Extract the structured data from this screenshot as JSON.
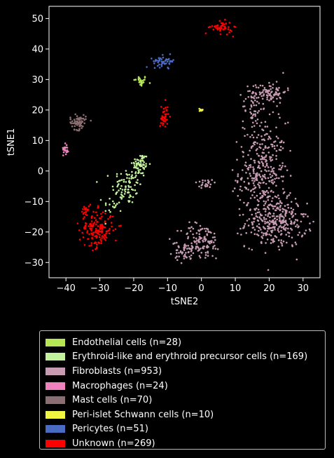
{
  "chart_data": {
    "type": "scatter",
    "title": "",
    "xlabel": "tSNE2",
    "ylabel": "tSNE1",
    "xlim": [
      -45,
      35
    ],
    "ylim": [
      -35,
      54
    ],
    "xticks": [
      -40,
      -30,
      -20,
      -10,
      0,
      10,
      20,
      30
    ],
    "yticks": [
      -30,
      -20,
      -10,
      0,
      10,
      20,
      30,
      40,
      50
    ],
    "grid": false,
    "legend_position": "below",
    "series": [
      {
        "name": "Endothelial cells (n=28)",
        "color": "#b5e655",
        "count": 28,
        "clusters": [
          {
            "x": -18,
            "y": 29.5,
            "sx": 1.0,
            "sy": 0.9,
            "n": 28
          }
        ]
      },
      {
        "name": "Erythroid-like and erythroid precursor cells (n=169)",
        "color": "#c2f29b",
        "count": 169,
        "clusters": [
          {
            "x": -22,
            "y": -5,
            "sx": 2.2,
            "sy": 3.0,
            "n": 80
          },
          {
            "x": -18,
            "y": 2,
            "sx": 1.2,
            "sy": 2.0,
            "n": 70
          },
          {
            "x": -26,
            "y": -11,
            "sx": 1.5,
            "sy": 1.5,
            "n": 19
          }
        ]
      },
      {
        "name": "Fibroblasts (n=953)",
        "color": "#c79cb2",
        "count": 953,
        "clusters": [
          {
            "x": 18,
            "y": 0,
            "sx": 3.5,
            "sy": 8.0,
            "n": 330
          },
          {
            "x": 22,
            "y": -17,
            "sx": 4.5,
            "sy": 4.0,
            "n": 300
          },
          {
            "x": 20,
            "y": 26,
            "sx": 2.5,
            "sy": 1.8,
            "n": 90
          },
          {
            "x": 15,
            "y": 21,
            "sx": 1.5,
            "sy": 3.0,
            "n": 50
          },
          {
            "x": 0,
            "y": -23,
            "sx": 3.0,
            "sy": 3.0,
            "n": 120
          },
          {
            "x": -5,
            "y": -27,
            "sx": 1.5,
            "sy": 1.5,
            "n": 40
          },
          {
            "x": 1,
            "y": -4,
            "sx": 1.8,
            "sy": 0.8,
            "n": 23
          }
        ]
      },
      {
        "name": "Macrophages (n=24)",
        "color": "#ee82bc",
        "count": 24,
        "clusters": [
          {
            "x": -40,
            "y": 7.5,
            "sx": 0.4,
            "sy": 1.0,
            "n": 24
          }
        ]
      },
      {
        "name": "Mast cells (n=70)",
        "color": "#8a6e72",
        "count": 70,
        "clusters": [
          {
            "x": -36.5,
            "y": 16,
            "sx": 1.2,
            "sy": 1.2,
            "n": 70
          }
        ]
      },
      {
        "name": "Peri-islet Schwann cells (n=10)",
        "color": "#f0f542",
        "count": 10,
        "clusters": [
          {
            "x": 0,
            "y": 20,
            "sx": 0.3,
            "sy": 0.25,
            "n": 10
          }
        ]
      },
      {
        "name": "Pericytes (n=51)",
        "color": "#4a6bc4",
        "count": 51,
        "clusters": [
          {
            "x": -11,
            "y": 36,
            "sx": 1.6,
            "sy": 0.9,
            "n": 51
          }
        ]
      },
      {
        "name": "Unknown (n=269)",
        "color": "#ff0000",
        "count": 269,
        "clusters": [
          {
            "x": -31,
            "y": -19,
            "sx": 2.5,
            "sy": 3.0,
            "n": 160
          },
          {
            "x": 6,
            "y": 47,
            "sx": 1.6,
            "sy": 1.0,
            "n": 50
          },
          {
            "x": -11,
            "y": 18,
            "sx": 0.6,
            "sy": 2.2,
            "n": 40
          },
          {
            "x": -34,
            "y": -13,
            "sx": 0.8,
            "sy": 0.8,
            "n": 17
          },
          {
            "x": -24,
            "y": -18,
            "sx": 0.2,
            "sy": 0.2,
            "n": 2
          }
        ]
      }
    ]
  }
}
